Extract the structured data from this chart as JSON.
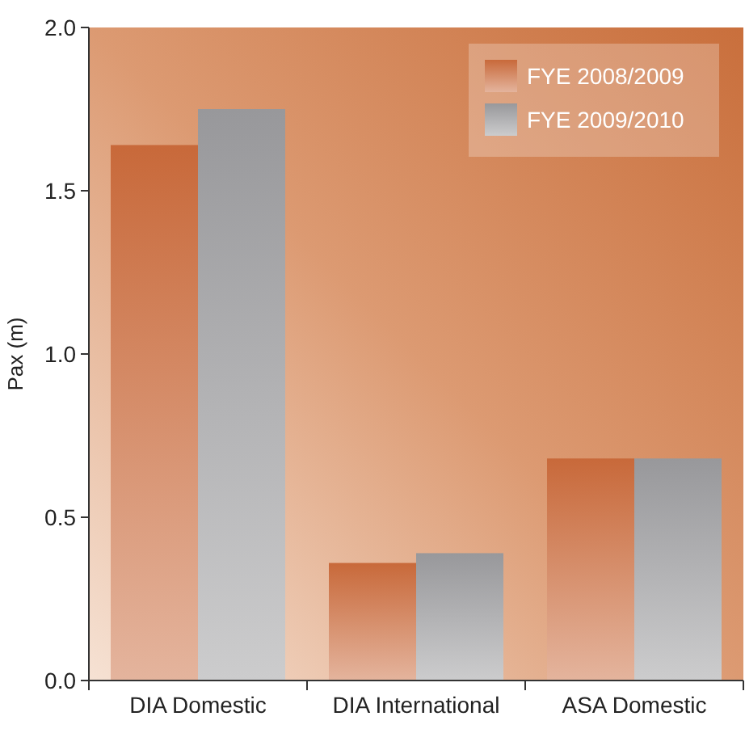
{
  "chart_data": {
    "type": "bar",
    "ylabel": "Pax (m)",
    "categories": [
      "DIA Domestic",
      "DIA International",
      "ASA Domestic"
    ],
    "series": [
      {
        "name": "FYE 2008/2009",
        "color": "#c8693a",
        "values": [
          1.64,
          0.36,
          0.68
        ]
      },
      {
        "name": "FYE 2009/2010",
        "color": "#98989b",
        "values": [
          1.75,
          0.39,
          0.68
        ]
      }
    ],
    "ylim": [
      0,
      2
    ],
    "yticks": [
      {
        "value": 0,
        "label": "0.0"
      },
      0.5,
      {
        "value": 1,
        "label": "1.0"
      },
      1.5,
      {
        "value": 2,
        "label": "2.0"
      }
    ],
    "legend": "top right",
    "grid": false
  }
}
